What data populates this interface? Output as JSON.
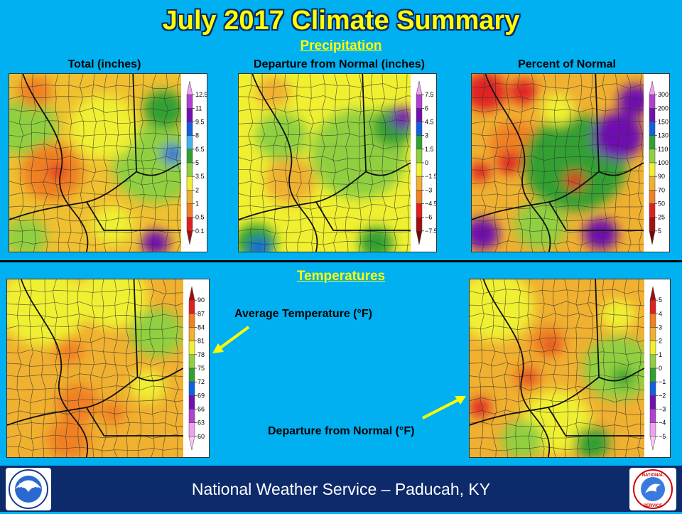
{
  "header": {
    "title": "July 2017 Climate Summary"
  },
  "precipitation": {
    "section_title": "Precipitation",
    "panels": [
      {
        "label": "Total  (inches)",
        "legend_ticks": [
          "12.5",
          "11",
          "9.5",
          "8",
          "6.5",
          "5",
          "3.5",
          "2",
          "1",
          "0.5",
          "0.1"
        ],
        "legend_colors": [
          "#f0a0f0",
          "#b040d0",
          "#7010b0",
          "#1060e0",
          "#40b0f0",
          "#30a030",
          "#90d040",
          "#f0f030",
          "#f0b030",
          "#f08020",
          "#e02020",
          "#a01010"
        ]
      },
      {
        "label": "Departure  from Normal (inches)",
        "legend_ticks": [
          "7.5",
          "6",
          "4.5",
          "3",
          "1.5",
          "0",
          "−1.5",
          "−3",
          "−4.5",
          "−6",
          "−7.5"
        ],
        "legend_colors": [
          "#f0a0f0",
          "#b040d0",
          "#7010b0",
          "#1060e0",
          "#30a030",
          "#90d040",
          "#f0f030",
          "#f0b030",
          "#f08020",
          "#e02020",
          "#a01010",
          "#700808"
        ]
      },
      {
        "label": "Percent of Normal",
        "legend_ticks": [
          "300",
          "200",
          "150",
          "130",
          "110",
          "100",
          "90",
          "70",
          "50",
          "25",
          "5"
        ],
        "legend_colors": [
          "#f0a0f0",
          "#b040d0",
          "#7010b0",
          "#1060e0",
          "#30a030",
          "#90d040",
          "#f0f030",
          "#f0b030",
          "#f08020",
          "#e02020",
          "#a01010",
          "#700808"
        ]
      }
    ]
  },
  "temperatures": {
    "section_title": "Temperatures",
    "average": {
      "annotation": "Average Temperature  (°F)",
      "legend_ticks": [
        "90",
        "87",
        "84",
        "81",
        "78",
        "75",
        "72",
        "69",
        "66",
        "63",
        "60"
      ],
      "legend_colors": [
        "#a01010",
        "#e02020",
        "#f08020",
        "#f0b030",
        "#f0f030",
        "#90d040",
        "#30a030",
        "#1060e0",
        "#7010b0",
        "#b040d0",
        "#f0a0f0",
        "#f8c8f8"
      ]
    },
    "departure": {
      "annotation": "Departure  from Normal (°F)",
      "legend_ticks": [
        "5",
        "4",
        "3",
        "2",
        "1",
        "0",
        "−1",
        "−2",
        "−3",
        "−4",
        "−5"
      ],
      "legend_colors": [
        "#a01010",
        "#e02020",
        "#f08020",
        "#f0b030",
        "#f0f030",
        "#90d040",
        "#30a030",
        "#1060e0",
        "#7010b0",
        "#b040d0",
        "#f0a0f0",
        "#f8c8f8"
      ]
    }
  },
  "footer": {
    "text": "National Weather Service – Paducah, KY",
    "left_logo": "NOAA",
    "right_logo_top": "NATIONAL",
    "right_logo_bottom": "SERVICE"
  },
  "icons": {
    "left_logo": "noaa-logo-icon",
    "right_logo": "nws-logo-icon",
    "arrows": "yellow-arrow-icon"
  }
}
